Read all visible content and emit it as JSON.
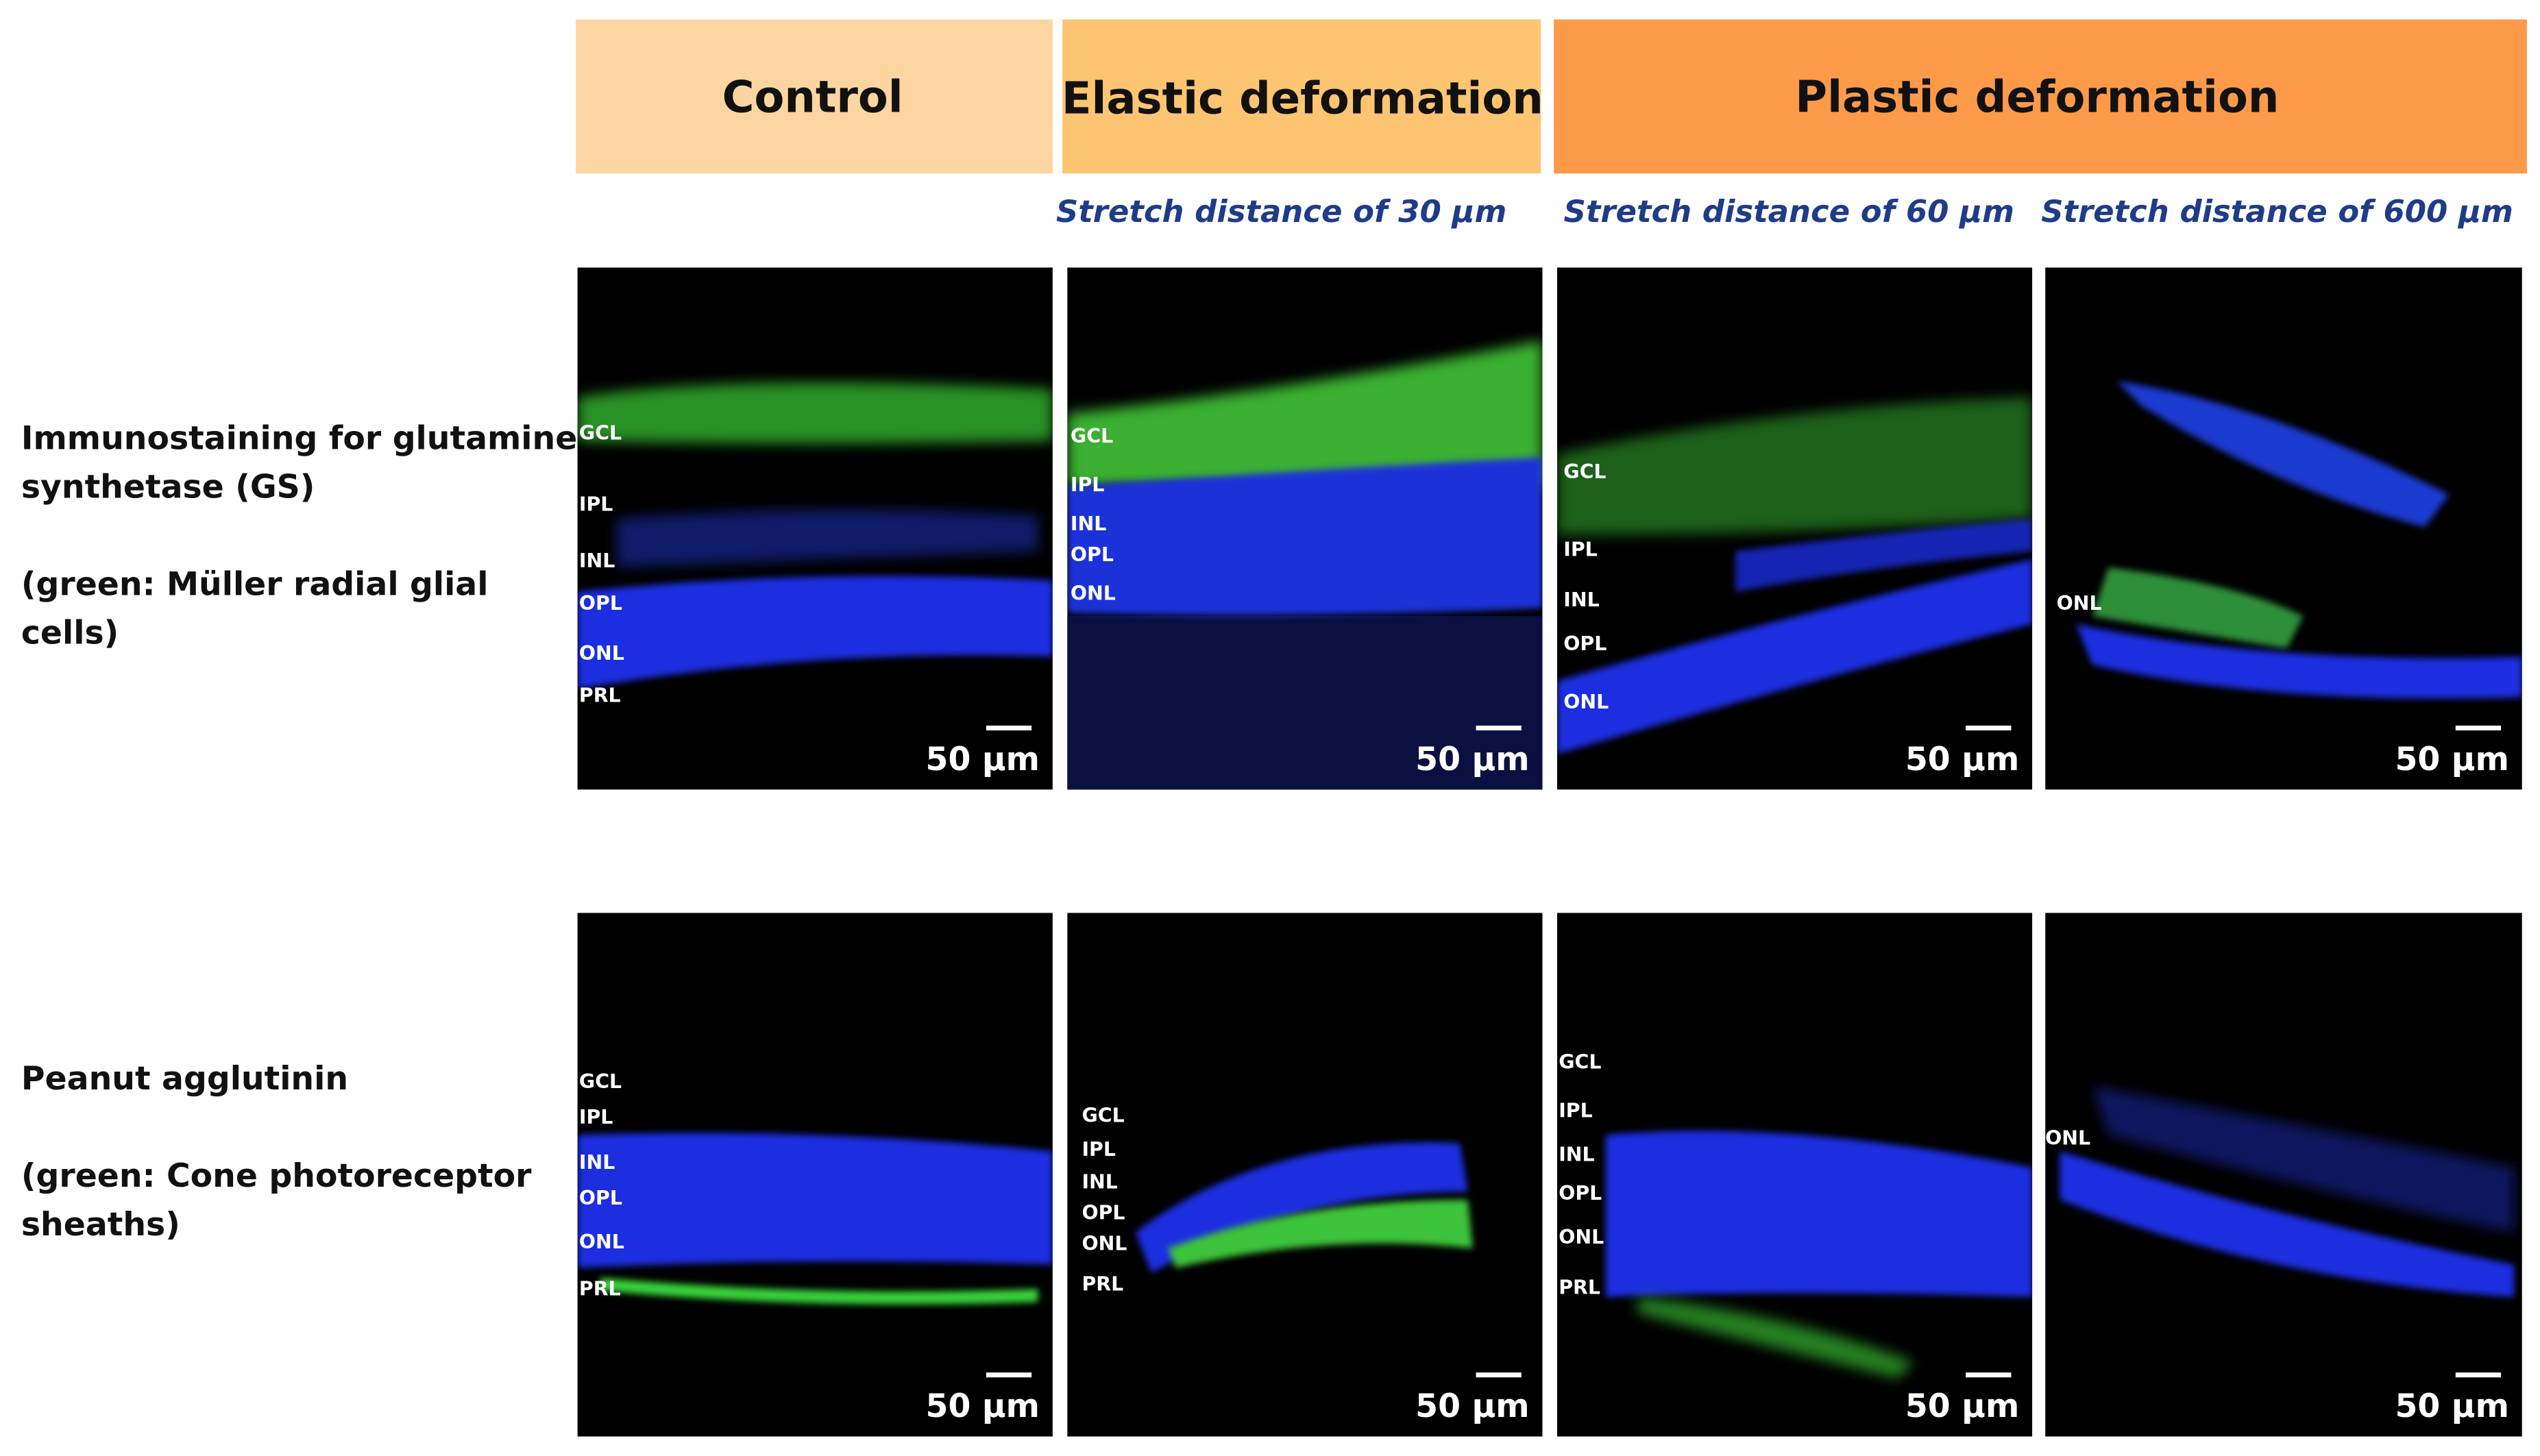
{
  "headers": [
    "Control",
    "Elastic deformation",
    "Plastic deformation"
  ],
  "subheaders": [
    "Stretch distance of 30 µm",
    "Stretch distance of 60 µm",
    "Stretch distance of 600 µm"
  ],
  "rows": [
    {
      "label_lines": [
        "Immunostaining for glutamine",
        "synthetase (GS)"
      ],
      "note_lines": [
        "(green: Müller radial glial",
        "cells)"
      ],
      "panels": [
        {
          "layers": [
            "GCL",
            "IPL",
            "INL",
            "OPL",
            "ONL",
            "PRL"
          ],
          "scale_bar": "50 µm"
        },
        {
          "layers": [
            "GCL",
            "IPL",
            "INL",
            "OPL",
            "ONL"
          ],
          "scale_bar": "50 µm"
        },
        {
          "layers": [
            "GCL",
            "IPL",
            "INL",
            "OPL",
            "ONL"
          ],
          "scale_bar": "50 µm"
        },
        {
          "layers": [
            "ONL"
          ],
          "scale_bar": "50 µm"
        }
      ]
    },
    {
      "label_lines": [
        "Peanut agglutinin"
      ],
      "note_lines": [
        "(green: Cone photoreceptor",
        "sheaths)"
      ],
      "panels": [
        {
          "layers": [
            "GCL",
            "IPL",
            "INL",
            "OPL",
            "ONL",
            "PRL"
          ],
          "scale_bar": "50 µm"
        },
        {
          "layers": [
            "GCL",
            "IPL",
            "INL",
            "OPL",
            "ONL",
            "PRL"
          ],
          "scale_bar": "50 µm"
        },
        {
          "layers": [
            "GCL",
            "IPL",
            "INL",
            "OPL",
            "ONL",
            "PRL"
          ],
          "scale_bar": "50 µm"
        },
        {
          "layers": [
            "ONL"
          ],
          "scale_bar": "50 µm"
        }
      ]
    }
  ]
}
